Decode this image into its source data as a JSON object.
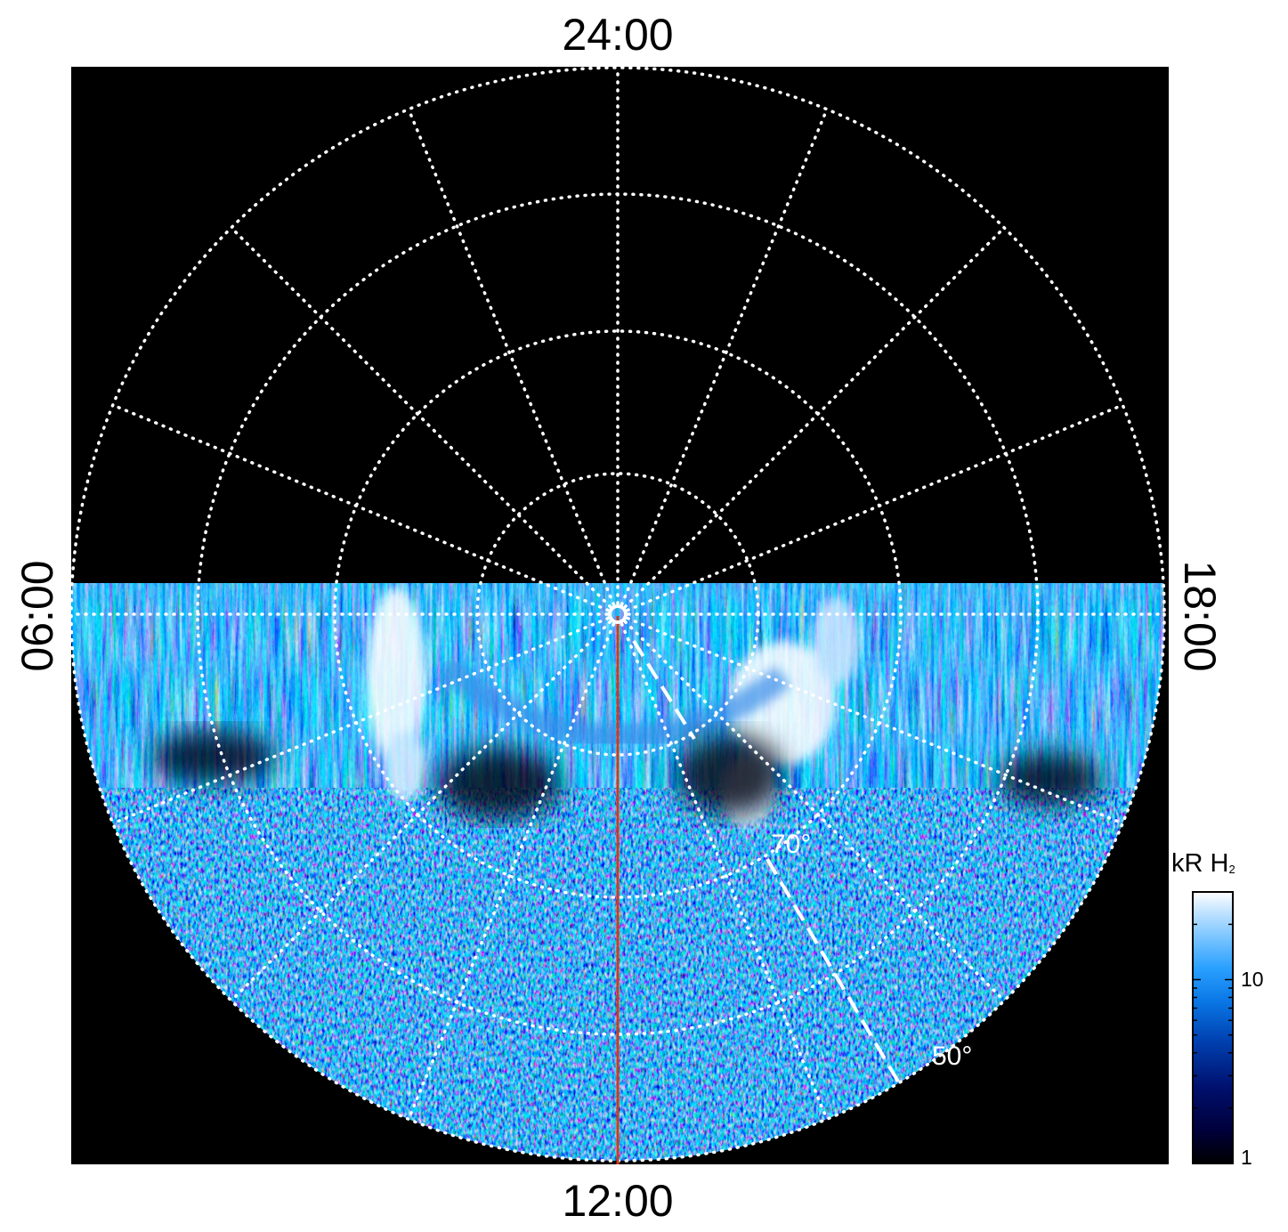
{
  "chart_data": {
    "type": "heatmap",
    "projection": "polar (local time vs latitude, viewed from pole)",
    "local_time_labels": {
      "top": "24:00",
      "bottom": "12:00",
      "left": "06:00",
      "right": "18:00"
    },
    "latitude_labels": [
      "70°",
      "50°"
    ],
    "colorbar": {
      "title_main": "kR H",
      "title_subscript": "2",
      "scale": "log",
      "range": [
        1,
        30
      ],
      "tick_labels": [
        {
          "value": 1,
          "label": "1"
        },
        {
          "value": 10,
          "label": "10"
        }
      ],
      "colors": [
        "#000000",
        "#00003a",
        "#00106e",
        "#0040b0",
        "#0a78e6",
        "#2aa0ff",
        "#78c4ff",
        "#c4e4ff",
        "#ffffff"
      ]
    },
    "annotations": {
      "noon_meridian_line_color": "#d03a1e",
      "grid_line_color": "#ffffff",
      "background_color": "#000000"
    }
  }
}
